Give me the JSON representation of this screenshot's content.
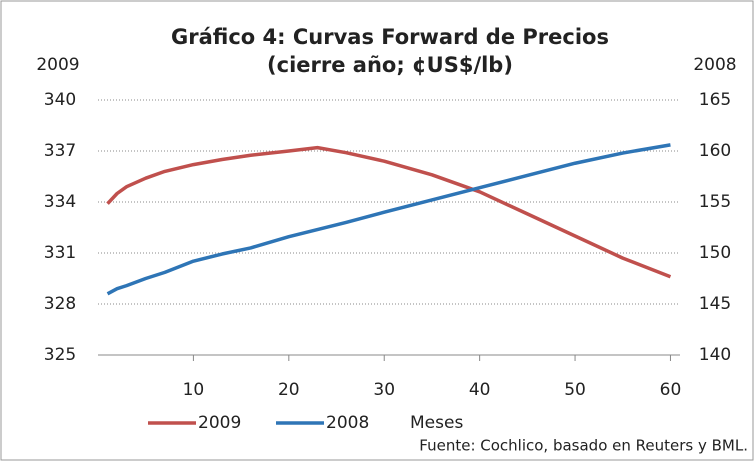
{
  "chart_data": {
    "type": "line",
    "title": "Gráfico 4: Curvas Forward de Precios",
    "subtitle": "(cierre año; ¢US$/lb)",
    "ylabel": "2009",
    "y2label": "2008",
    "xlabel": "Meses",
    "source": "Fuente: Cochlico, basado en Reuters y BML.",
    "x": [
      1,
      2,
      3,
      5,
      7,
      10,
      13,
      16,
      20,
      23,
      26,
      30,
      35,
      40,
      45,
      50,
      55,
      60
    ],
    "series": [
      {
        "name": "2009",
        "color": "#c0504d",
        "axis": "y",
        "values": [
          333.9,
          334.5,
          334.9,
          335.4,
          335.8,
          336.2,
          336.5,
          336.75,
          337.0,
          337.2,
          336.9,
          336.4,
          335.6,
          334.6,
          333.3,
          332.0,
          330.7,
          329.6
        ]
      },
      {
        "name": "2008",
        "color": "#2e75b6",
        "axis": "y2",
        "values": [
          146.0,
          146.5,
          146.8,
          147.5,
          148.1,
          149.2,
          149.9,
          150.5,
          151.6,
          152.3,
          153.0,
          154.0,
          155.2,
          156.4,
          157.6,
          158.8,
          159.8,
          160.6
        ]
      }
    ],
    "xlim": [
      0,
      61
    ],
    "xticks": [
      10,
      20,
      30,
      40,
      50,
      60
    ],
    "ylim": [
      325,
      340
    ],
    "yticks": [
      325,
      328,
      331,
      334,
      337,
      340
    ],
    "y2lim": [
      140,
      165
    ],
    "y2ticks": [
      140,
      145,
      150,
      155,
      160,
      165
    ],
    "grid": true
  }
}
